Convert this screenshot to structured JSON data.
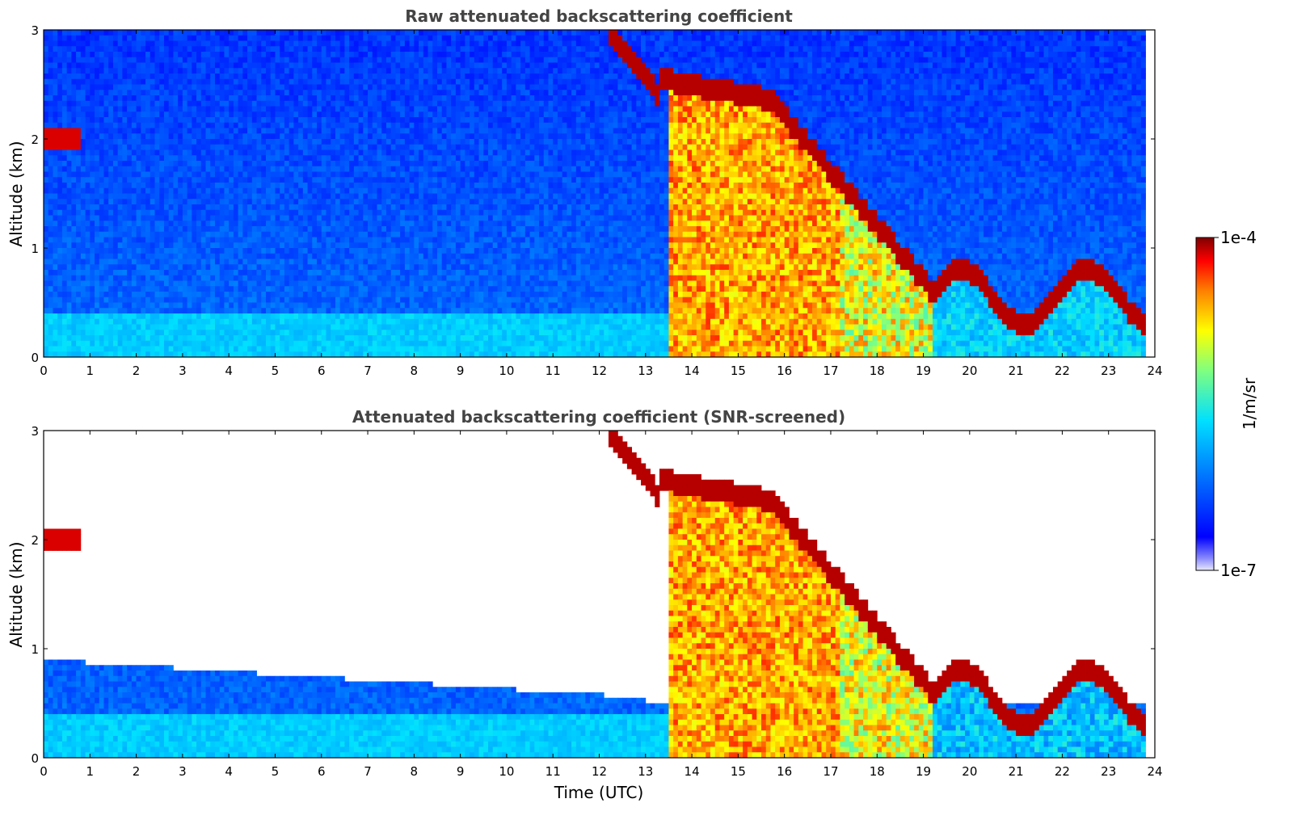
{
  "chart_data": [
    {
      "type": "heatmap",
      "title": "Raw attenuated backscattering coefficient",
      "xlabel": "",
      "ylabel": "Altitude (km)",
      "xlim": [
        0,
        24
      ],
      "ylim": [
        0,
        3
      ],
      "xticks": [
        "0",
        "1",
        "2",
        "3",
        "4",
        "5",
        "6",
        "7",
        "8",
        "9",
        "10",
        "11",
        "12",
        "13",
        "14",
        "15",
        "16",
        "17",
        "18",
        "19",
        "20",
        "21",
        "22",
        "23",
        "24"
      ],
      "yticks": [
        "0",
        "1",
        "2",
        "3"
      ],
      "colorscale": "jet (log)",
      "grid": false
    },
    {
      "type": "heatmap",
      "title": "Attenuated backscattering coefficient (SNR-screened)",
      "xlabel": "Time (UTC)",
      "ylabel": "Altitude (km)",
      "xlim": [
        0,
        24
      ],
      "ylim": [
        0,
        3
      ],
      "xticks": [
        "0",
        "1",
        "2",
        "3",
        "4",
        "5",
        "6",
        "7",
        "8",
        "9",
        "10",
        "11",
        "12",
        "13",
        "14",
        "15",
        "16",
        "17",
        "18",
        "19",
        "20",
        "21",
        "22",
        "23",
        "24"
      ],
      "yticks": [
        "0",
        "1",
        "2",
        "3"
      ],
      "colorscale": "jet (log)",
      "grid": false
    }
  ],
  "colorbar": {
    "label": "1/m/sr",
    "max_label": "1e-4",
    "min_label": "1e-7",
    "colors": [
      "#00007f",
      "#0000ff",
      "#007fff",
      "#00ffff",
      "#7fff7f",
      "#ffff00",
      "#ff7f00",
      "#ff0000",
      "#7f0000"
    ]
  }
}
